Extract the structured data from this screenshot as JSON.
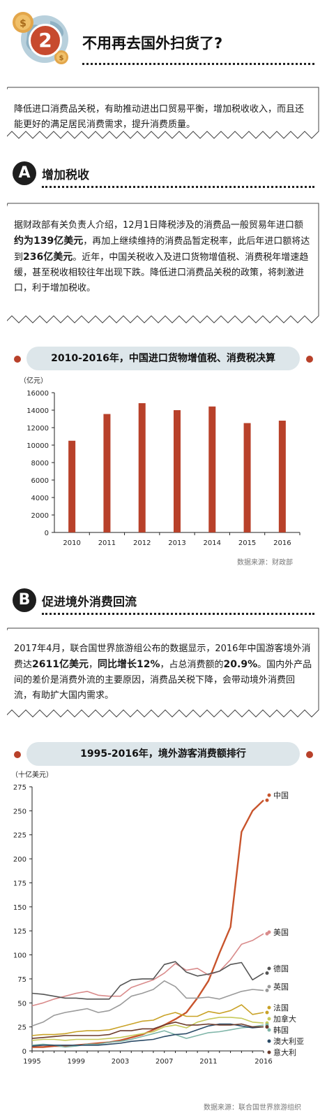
{
  "header": {
    "number": "2",
    "title": "不用再去国外扫货了?"
  },
  "intro": {
    "text": "降低进口消费品关税，有助推动进出口贸易平衡，增加税收收入，而且还能更好的满足居民消费需求，提升消费质量。"
  },
  "section_a": {
    "letter": "A",
    "title": "增加税收",
    "paragraph": {
      "p1": "据财政部有关负责人介绍，12月1日降税涉及的消费品一般贸易年进口额",
      "b1": "约为139亿美元",
      "p2": "，再加上继续维持的消费品暂定税率，此后年进口额将达到",
      "b2": "236亿美元",
      "p3": "。近年，中国关税收入及进口货物增值税、消费税年增速趋缓，甚至税收相较往年出现下跌。降低进口消费品关税的政策，将刺激进口，利于增加税收。"
    },
    "chart_title": "2010-2016年，中国进口货物增值税、消费税决算",
    "source": "数据来源：财政部"
  },
  "section_b": {
    "letter": "B",
    "title": "促进境外消费回流",
    "paragraph": {
      "p1": "2017年4月，联合国世界旅游组公布的数据显示，2016年中国游客境外消费达",
      "b1": "2611亿美元",
      "p2": "，",
      "b2": "同比增长12%",
      "p3": "，占总消费额的",
      "b3": "20.9%",
      "p4": "。国内外产品间的差价是消费外流的主要原因，消费品关税下降，会带动境外消费回流，有助扩大国内需求。"
    },
    "chart_title": "1995-2016年，境外游客消费额排行",
    "source": "数据来源：联合国世界旅游组织"
  },
  "colors": {
    "accent_red": "#b8412a",
    "pill_bg": "#dde6ea",
    "dark": "#1e1e1e"
  },
  "chart_data": [
    {
      "type": "bar",
      "ylabel": "（亿元）",
      "ylim": [
        0,
        16000
      ],
      "yticks": [
        0,
        2000,
        4000,
        6000,
        8000,
        10000,
        12000,
        14000,
        16000
      ],
      "categories": [
        "2010",
        "2011",
        "2012",
        "2013",
        "2014",
        "2015",
        "2016"
      ],
      "values": [
        10500,
        13560,
        14800,
        14000,
        14420,
        12520,
        12800
      ],
      "color": "#b8412a",
      "grid": false
    },
    {
      "type": "line",
      "ylabel": "（十亿美元）",
      "ylim": [
        0,
        275
      ],
      "yticks": [
        0,
        25,
        50,
        75,
        100,
        125,
        150,
        175,
        200,
        225,
        250,
        275
      ],
      "xticks": [
        "1995",
        "1999",
        "2003",
        "2007",
        "2011",
        "2016"
      ],
      "x": [
        1995,
        1996,
        1997,
        1998,
        1999,
        2000,
        2001,
        2002,
        2003,
        2004,
        2005,
        2006,
        2007,
        2008,
        2009,
        2010,
        2011,
        2012,
        2013,
        2014,
        2015,
        2016
      ],
      "grid": false,
      "series": [
        {
          "name": "中国",
          "color": "#c8542c",
          "values": [
            4,
            4,
            5,
            5,
            6,
            7,
            8,
            9,
            11,
            14,
            17,
            22,
            27,
            33,
            40,
            55,
            73,
            102,
            129,
            228,
            250,
            261
          ]
        },
        {
          "name": "美国",
          "color": "#d98b8b",
          "values": [
            47,
            50,
            54,
            57,
            60,
            62,
            58,
            57,
            57,
            66,
            70,
            74,
            81,
            91,
            84,
            86,
            79,
            83,
            95,
            111,
            115,
            122
          ]
        },
        {
          "name": "德国",
          "color": "#555555",
          "values": [
            60,
            59,
            57,
            55,
            55,
            54,
            54,
            54,
            68,
            74,
            75,
            75,
            90,
            93,
            82,
            78,
            80,
            83,
            90,
            92,
            74,
            81
          ]
        },
        {
          "name": "英国",
          "color": "#9a9a9a",
          "values": [
            26,
            30,
            37,
            40,
            42,
            44,
            40,
            42,
            48,
            57,
            60,
            64,
            73,
            67,
            55,
            55,
            56,
            54,
            58,
            62,
            64,
            63
          ]
        },
        {
          "name": "法国",
          "color": "#c9a227",
          "values": [
            16,
            17,
            17,
            18,
            20,
            21,
            21,
            22,
            25,
            28,
            31,
            32,
            37,
            40,
            36,
            36,
            41,
            39,
            42,
            48,
            38,
            40
          ]
        },
        {
          "name": "加拿大",
          "color": "#c7c95a",
          "values": [
            11,
            12,
            12,
            11,
            12,
            12,
            12,
            13,
            14,
            16,
            18,
            20,
            25,
            27,
            24,
            30,
            33,
            35,
            35,
            34,
            30,
            29
          ]
        },
        {
          "name": "韩国",
          "color": "#7fb5a8",
          "values": [
            6,
            7,
            6,
            4,
            5,
            7,
            7,
            9,
            10,
            12,
            15,
            18,
            21,
            17,
            13,
            16,
            19,
            20,
            22,
            24,
            25,
            27
          ]
        },
        {
          "name": "澳大利亚",
          "color": "#2a4a66",
          "values": [
            5,
            6,
            6,
            6,
            6,
            6,
            6,
            7,
            8,
            10,
            11,
            12,
            15,
            17,
            18,
            22,
            26,
            28,
            28,
            26,
            24,
            25
          ]
        },
        {
          "name": "意大利",
          "color": "#6b3a2a",
          "values": [
            13,
            14,
            15,
            16,
            16,
            16,
            16,
            17,
            21,
            21,
            23,
            23,
            27,
            30,
            27,
            27,
            28,
            27,
            27,
            28,
            25,
            25
          ]
        }
      ]
    }
  ]
}
